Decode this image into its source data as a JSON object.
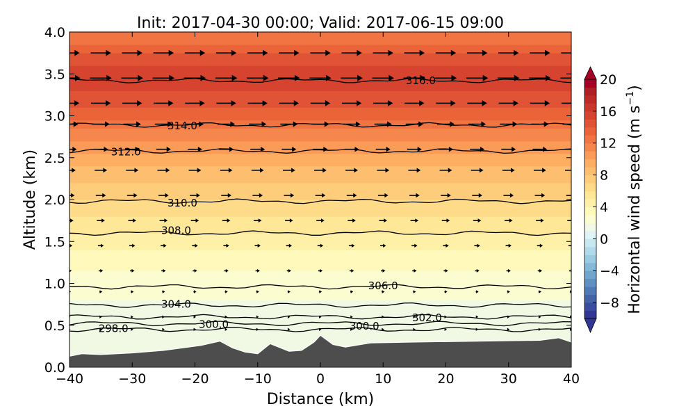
{
  "chart_data": {
    "type": "heatmap",
    "title": "Init: 2017-04-30 00:00; Valid: 2017-06-15 09:00",
    "xlabel": "Distance (km)",
    "ylabel": "Altitude (km)",
    "xlim": [
      -40,
      40
    ],
    "ylim": [
      0.0,
      4.0
    ],
    "x_ticks": [
      -40,
      -30,
      -20,
      -10,
      0,
      10,
      20,
      30,
      40
    ],
    "x_tick_labels": [
      "−40",
      "−30",
      "−20",
      "−10",
      "0",
      "10",
      "20",
      "30",
      "40"
    ],
    "y_ticks": [
      0.0,
      0.5,
      1.0,
      1.5,
      2.0,
      2.5,
      3.0,
      3.5,
      4.0
    ],
    "y_tick_labels": [
      "0.0",
      "0.5",
      "1.0",
      "1.5",
      "2.0",
      "2.5",
      "3.0",
      "3.5",
      "4.0"
    ],
    "colorbar": {
      "label": "Horizontal wind speed (m s",
      "label_exponent": "−1",
      "label_close": ")",
      "min": -10,
      "max": 20,
      "step": 1,
      "extend": "both",
      "ticks": [
        -8,
        -4,
        0,
        4,
        8,
        12,
        16,
        20
      ],
      "tick_labels": [
        "−8",
        "−4",
        "0",
        "4",
        "8",
        "12",
        "16",
        "20"
      ],
      "colors": [
        "#313695",
        "#3a4c9f",
        "#4563a8",
        "#5079b5",
        "#5e91c2",
        "#70a6cd",
        "#85b9d8",
        "#9acbe2",
        "#b1dbea",
        "#c8e8f1",
        "#dff2f6",
        "#f1f9e4",
        "#fbfdd0",
        "#fff9bb",
        "#fff0a8",
        "#fee797",
        "#fedb88",
        "#fecd7b",
        "#fdbe6f",
        "#fdae61",
        "#fa9b57",
        "#f6874c",
        "#f17542",
        "#ea6339",
        "#e05334",
        "#d6432f",
        "#ca372b",
        "#bd2b27",
        "#ae2025",
        "#a50026"
      ]
    },
    "wind_speed_profile": {
      "altitude_km": [
        0.2,
        0.5,
        0.8,
        1.0,
        1.3,
        1.5,
        1.8,
        2.0,
        2.3,
        2.5,
        2.8,
        3.0,
        3.3,
        3.5,
        3.8,
        4.0
      ],
      "speed_m_s": [
        1.0,
        1.5,
        2.0,
        2.5,
        3.5,
        4.5,
        6.0,
        7.0,
        8.5,
        9.5,
        11.5,
        13.5,
        15.0,
        15.5,
        13.5,
        12.0
      ]
    },
    "terrain": {
      "x_km": [
        -40,
        -38,
        -35,
        -30,
        -25,
        -22,
        -19,
        -16,
        -14,
        -12,
        -10,
        -8,
        -5,
        -3,
        -1,
        0,
        2,
        4,
        8,
        15,
        25,
        35,
        38,
        40
      ],
      "altitude_km": [
        0.13,
        0.16,
        0.15,
        0.17,
        0.2,
        0.23,
        0.26,
        0.31,
        0.23,
        0.18,
        0.16,
        0.28,
        0.19,
        0.2,
        0.3,
        0.38,
        0.27,
        0.24,
        0.29,
        0.3,
        0.31,
        0.32,
        0.35,
        0.3
      ],
      "color": "#4d4d4d"
    },
    "isentropes": {
      "levels_k": [
        298,
        300,
        302,
        304,
        306,
        308,
        310,
        312,
        314,
        316
      ],
      "series": [
        {
          "name": "298.0",
          "z_km": 0.45
        },
        {
          "name": "300.0",
          "z_km": 0.52
        },
        {
          "name": "302.0",
          "z_km": 0.6
        },
        {
          "name": "304.0",
          "z_km": 0.74
        },
        {
          "name": "306.0",
          "z_km": 0.96
        },
        {
          "name": "308.0",
          "z_km": 1.6
        },
        {
          "name": "310.0",
          "z_km": 1.98
        },
        {
          "name": "312.0",
          "z_km": 2.58
        },
        {
          "name": "314.0",
          "z_km": 2.89
        },
        {
          "name": "316.0",
          "z_km": 3.42
        }
      ],
      "labels": [
        {
          "text": "298.0",
          "x_km": -33,
          "z_km": 0.46
        },
        {
          "text": "300.0",
          "x_km": -17,
          "z_km": 0.51
        },
        {
          "text": "300.0",
          "x_km": 7,
          "z_km": 0.49
        },
        {
          "text": "302.0",
          "x_km": 17,
          "z_km": 0.59
        },
        {
          "text": "304.0",
          "x_km": -23,
          "z_km": 0.75
        },
        {
          "text": "306.0",
          "x_km": 10,
          "z_km": 0.97
        },
        {
          "text": "308.0",
          "x_km": -23,
          "z_km": 1.63
        },
        {
          "text": "310.0",
          "x_km": -22,
          "z_km": 1.96
        },
        {
          "text": "312.0",
          "x_km": -31,
          "z_km": 2.57
        },
        {
          "text": "314.0",
          "x_km": -22,
          "z_km": 2.88
        },
        {
          "text": "316.0",
          "x_km": 16,
          "z_km": 3.42
        }
      ]
    },
    "wind_vectors": {
      "x_km": [
        -40,
        -35,
        -30,
        -25,
        -20,
        -15,
        -10,
        -5,
        0,
        5,
        10,
        15,
        20,
        25,
        30,
        35,
        40
      ],
      "z_km": [
        0.45,
        0.6,
        0.9,
        1.15,
        1.45,
        1.75,
        2.05,
        2.35,
        2.6,
        2.9,
        3.15,
        3.45,
        3.75
      ],
      "u_m_s": [
        1.0,
        1.5,
        2.0,
        3.0,
        4.0,
        5.5,
        7.0,
        8.5,
        10.0,
        12.0,
        13.5,
        15.0,
        14.0
      ],
      "color": "#000000"
    }
  }
}
